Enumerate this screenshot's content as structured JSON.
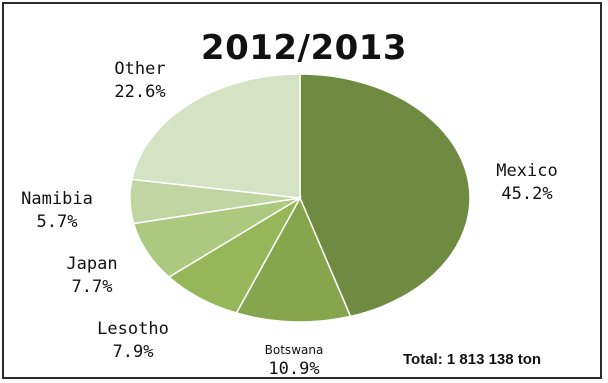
{
  "chart_data": {
    "type": "pie",
    "title": "2012/2013",
    "slices": [
      {
        "label": "Mexico",
        "value": 45.2,
        "display": "45.2%",
        "color": "#6e8b41"
      },
      {
        "label": "Botswana",
        "value": 10.9,
        "display": "10.9%",
        "color": "#86a64e"
      },
      {
        "label": "Lesotho",
        "value": 7.9,
        "display": "7.9%",
        "color": "#96b65a"
      },
      {
        "label": "Japan",
        "value": 7.7,
        "display": "7.7%",
        "color": "#abc97f"
      },
      {
        "label": "Namibia",
        "value": 5.7,
        "display": "5.7%",
        "color": "#bfd5a2"
      },
      {
        "label": "Other",
        "value": 22.6,
        "display": "22.6%",
        "color": "#d5e2c4"
      }
    ],
    "annotation": "Total: 1 813 138 ton"
  }
}
